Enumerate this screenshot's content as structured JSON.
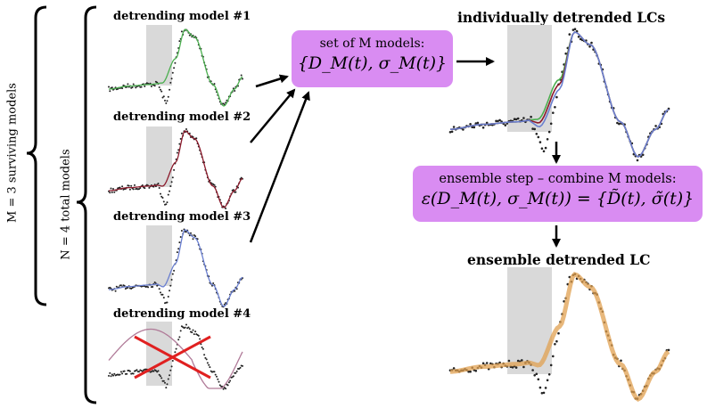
{
  "labels": {
    "m_surviving": "M = 3 surviving models",
    "n_total": "N = 4 total models"
  },
  "models": [
    {
      "title": "detrending model #1",
      "color": "#4caf50",
      "rejected": false
    },
    {
      "title": "detrending model #2",
      "color": "#8b1a2b",
      "rejected": false
    },
    {
      "title": "detrending model #3",
      "color": "#6a7fd0",
      "rejected": false
    },
    {
      "title": "detrending model #4",
      "color": "#b07a98",
      "rejected": true
    }
  ],
  "set_box": {
    "line1": "set of M models:",
    "line2": "{D_M(t), σ_M(t)}"
  },
  "individual": {
    "title": "individually detrended LCs",
    "colors": [
      "#4caf50",
      "#8b1a2b",
      "#6a7fd0"
    ]
  },
  "ensemble_box": {
    "line1": "ensemble step – combine M models:",
    "line2": "ε(D_M(t),  σ_M(t)) = {D̃(t), σ̃(t)}"
  },
  "ensemble": {
    "title": "ensemble detrended LC",
    "color": "#e0a050"
  },
  "colors": {
    "box": "#d98cf2",
    "shade": "#d9d9d9",
    "reject": "#e02020"
  }
}
